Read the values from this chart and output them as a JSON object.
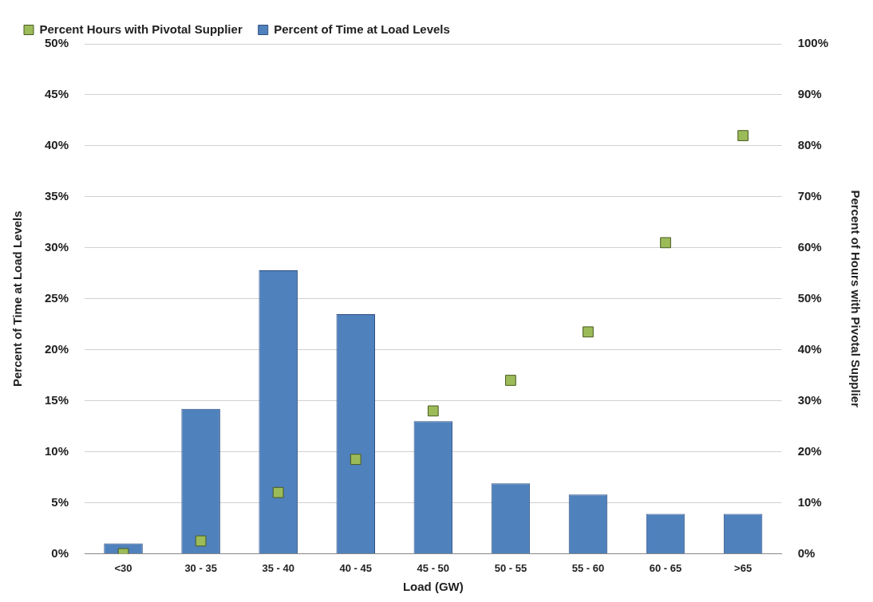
{
  "chart_data": {
    "type": "bar",
    "xlabel": "Load (GW)",
    "ylabel": "Percent of Time at Load Levels",
    "y2label": "Percent of Hours with Pivotal Supplier",
    "categories": [
      "<30",
      "30 - 35",
      "35 - 40",
      "40 - 45",
      "45 - 50",
      "50 - 55",
      "55 - 60",
      "60 - 65",
      ">65"
    ],
    "series": [
      {
        "name": "Percent of Time at Load Levels",
        "color": "#4f81bd",
        "values": [
          1.0,
          14.2,
          27.8,
          23.5,
          13.0,
          6.9,
          5.8,
          3.9,
          3.9
        ]
      },
      {
        "name": "Percent Hours with Pivotal Supplier",
        "type": "scatter",
        "axis": "y2",
        "color": "#9bbb59",
        "marker": "square",
        "x": [
          "<30",
          "30 - 35",
          "35 - 40",
          "40 - 45",
          "45 - 50",
          "50 - 55",
          "55 - 60",
          "60 - 65",
          ">65"
        ],
        "values": [
          0,
          2.5,
          12,
          18.5,
          28,
          34,
          43.5,
          61,
          82
        ]
      }
    ],
    "ylim": [
      0,
      50
    ],
    "yticks": [
      {
        "value": 0,
        "label": "0%"
      },
      {
        "value": 5,
        "label": "5%"
      },
      {
        "value": 10,
        "label": "10%"
      },
      {
        "value": 15,
        "label": "15%"
      },
      {
        "value": 20,
        "label": "20%"
      },
      {
        "value": 25,
        "label": "25%"
      },
      {
        "value": 30,
        "label": "30%"
      },
      {
        "value": 35,
        "label": "35%"
      },
      {
        "value": 40,
        "label": "40%"
      },
      {
        "value": 45,
        "label": "45%"
      },
      {
        "value": 50,
        "label": "50%"
      }
    ],
    "y2lim": [
      0,
      100
    ],
    "y2ticks": [
      {
        "value": 0,
        "label": "0%"
      },
      {
        "value": 10,
        "label": "10%"
      },
      {
        "value": 20,
        "label": "20%"
      },
      {
        "value": 30,
        "label": "30%"
      },
      {
        "value": 40,
        "label": "40%"
      },
      {
        "value": 50,
        "label": "50%"
      },
      {
        "value": 60,
        "label": "60%"
      },
      {
        "value": 70,
        "label": "70%"
      },
      {
        "value": 80,
        "label": "80%"
      },
      {
        "value": 90,
        "label": "90%"
      },
      {
        "value": 100,
        "label": "100%"
      }
    ],
    "grid": "y",
    "legend": "top left"
  }
}
